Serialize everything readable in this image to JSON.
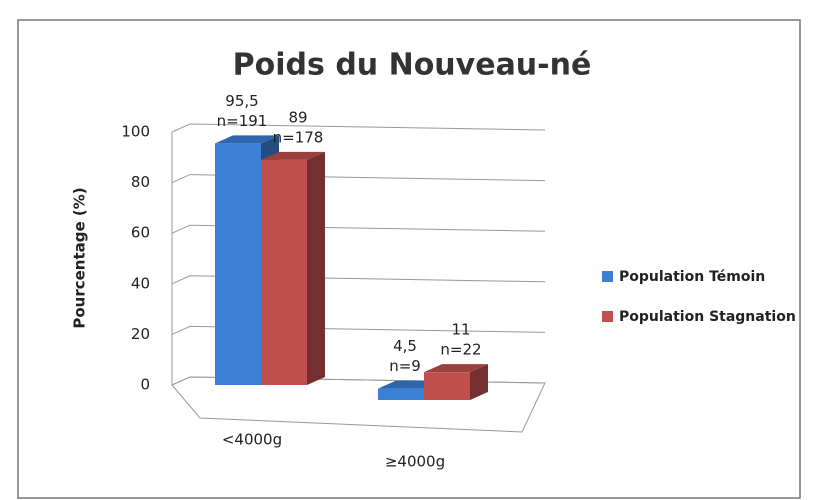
{
  "chart_data": {
    "type": "bar",
    "title": "Poids du Nouveau-né",
    "y_label": "Pourcentage (%)",
    "categories": [
      "<4000g",
      "≥4000g"
    ],
    "series": [
      {
        "name": "Population Témoin",
        "color": "#3b7fd6",
        "values": [
          95.5,
          4.5
        ],
        "value_labels": [
          "95,5",
          "4,5"
        ],
        "n_labels": [
          "n=191",
          "n=9"
        ]
      },
      {
        "name": "Population Stagnation",
        "color": "#c0504d",
        "values": [
          89,
          11
        ],
        "value_labels": [
          "89",
          "11"
        ],
        "n_labels": [
          "n=178",
          "n=22"
        ]
      }
    ],
    "ylim": [
      0,
      100
    ],
    "yticks": [
      0,
      20,
      40,
      60,
      80,
      100
    ],
    "grid": true,
    "legend": "right"
  }
}
